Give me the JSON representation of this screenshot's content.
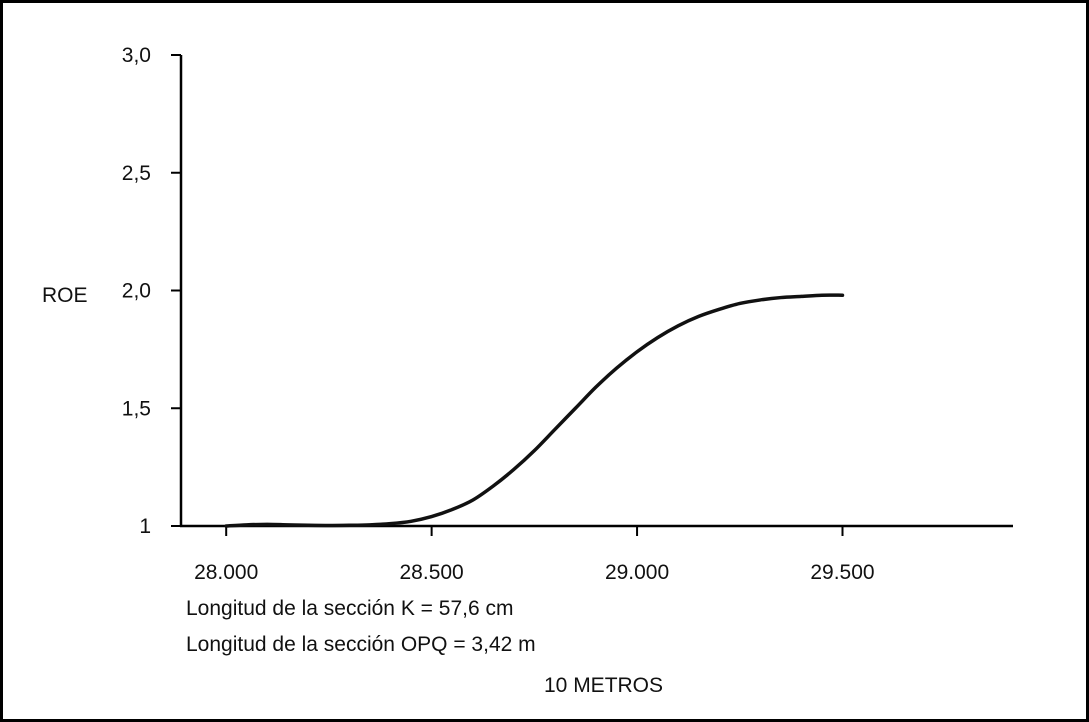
{
  "chart_data": {
    "type": "line",
    "ylabel": "ROE",
    "xlabel": "",
    "xlim": [
      27890,
      29915
    ],
    "ylim": [
      1.0,
      3.0
    ],
    "x_ticks": [
      {
        "value": 28000,
        "label": "28.000"
      },
      {
        "value": 28500,
        "label": "28.500"
      },
      {
        "value": 29000,
        "label": "29.000"
      },
      {
        "value": 29500,
        "label": "29.500"
      }
    ],
    "y_ticks": [
      {
        "value": 1.0,
        "label": "1"
      },
      {
        "value": 1.5,
        "label": "1,5"
      },
      {
        "value": 2.0,
        "label": "2,0"
      },
      {
        "value": 2.5,
        "label": "2,5"
      },
      {
        "value": 3.0,
        "label": "3,0"
      }
    ],
    "grid": false,
    "series": [
      {
        "color": "#111111",
        "x": [
          28000,
          28050,
          28100,
          28150,
          28200,
          28250,
          28300,
          28350,
          28400,
          28450,
          28500,
          28550,
          28600,
          28650,
          28700,
          28750,
          28800,
          28850,
          28900,
          28950,
          29000,
          29050,
          29100,
          29150,
          29200,
          29250,
          29300,
          29350,
          29400,
          29450,
          29500
        ],
        "y": [
          1.0,
          1.005,
          1.007,
          1.005,
          1.003,
          1.002,
          1.003,
          1.005,
          1.01,
          1.02,
          1.04,
          1.07,
          1.11,
          1.17,
          1.24,
          1.32,
          1.41,
          1.5,
          1.59,
          1.67,
          1.74,
          1.8,
          1.85,
          1.89,
          1.92,
          1.945,
          1.96,
          1.97,
          1.975,
          1.98,
          1.98
        ]
      }
    ],
    "annotations": [
      "Longitud de la sección K = 57,6 cm",
      "Longitud de la sección OPQ = 3,42 m",
      "10 METROS"
    ]
  }
}
